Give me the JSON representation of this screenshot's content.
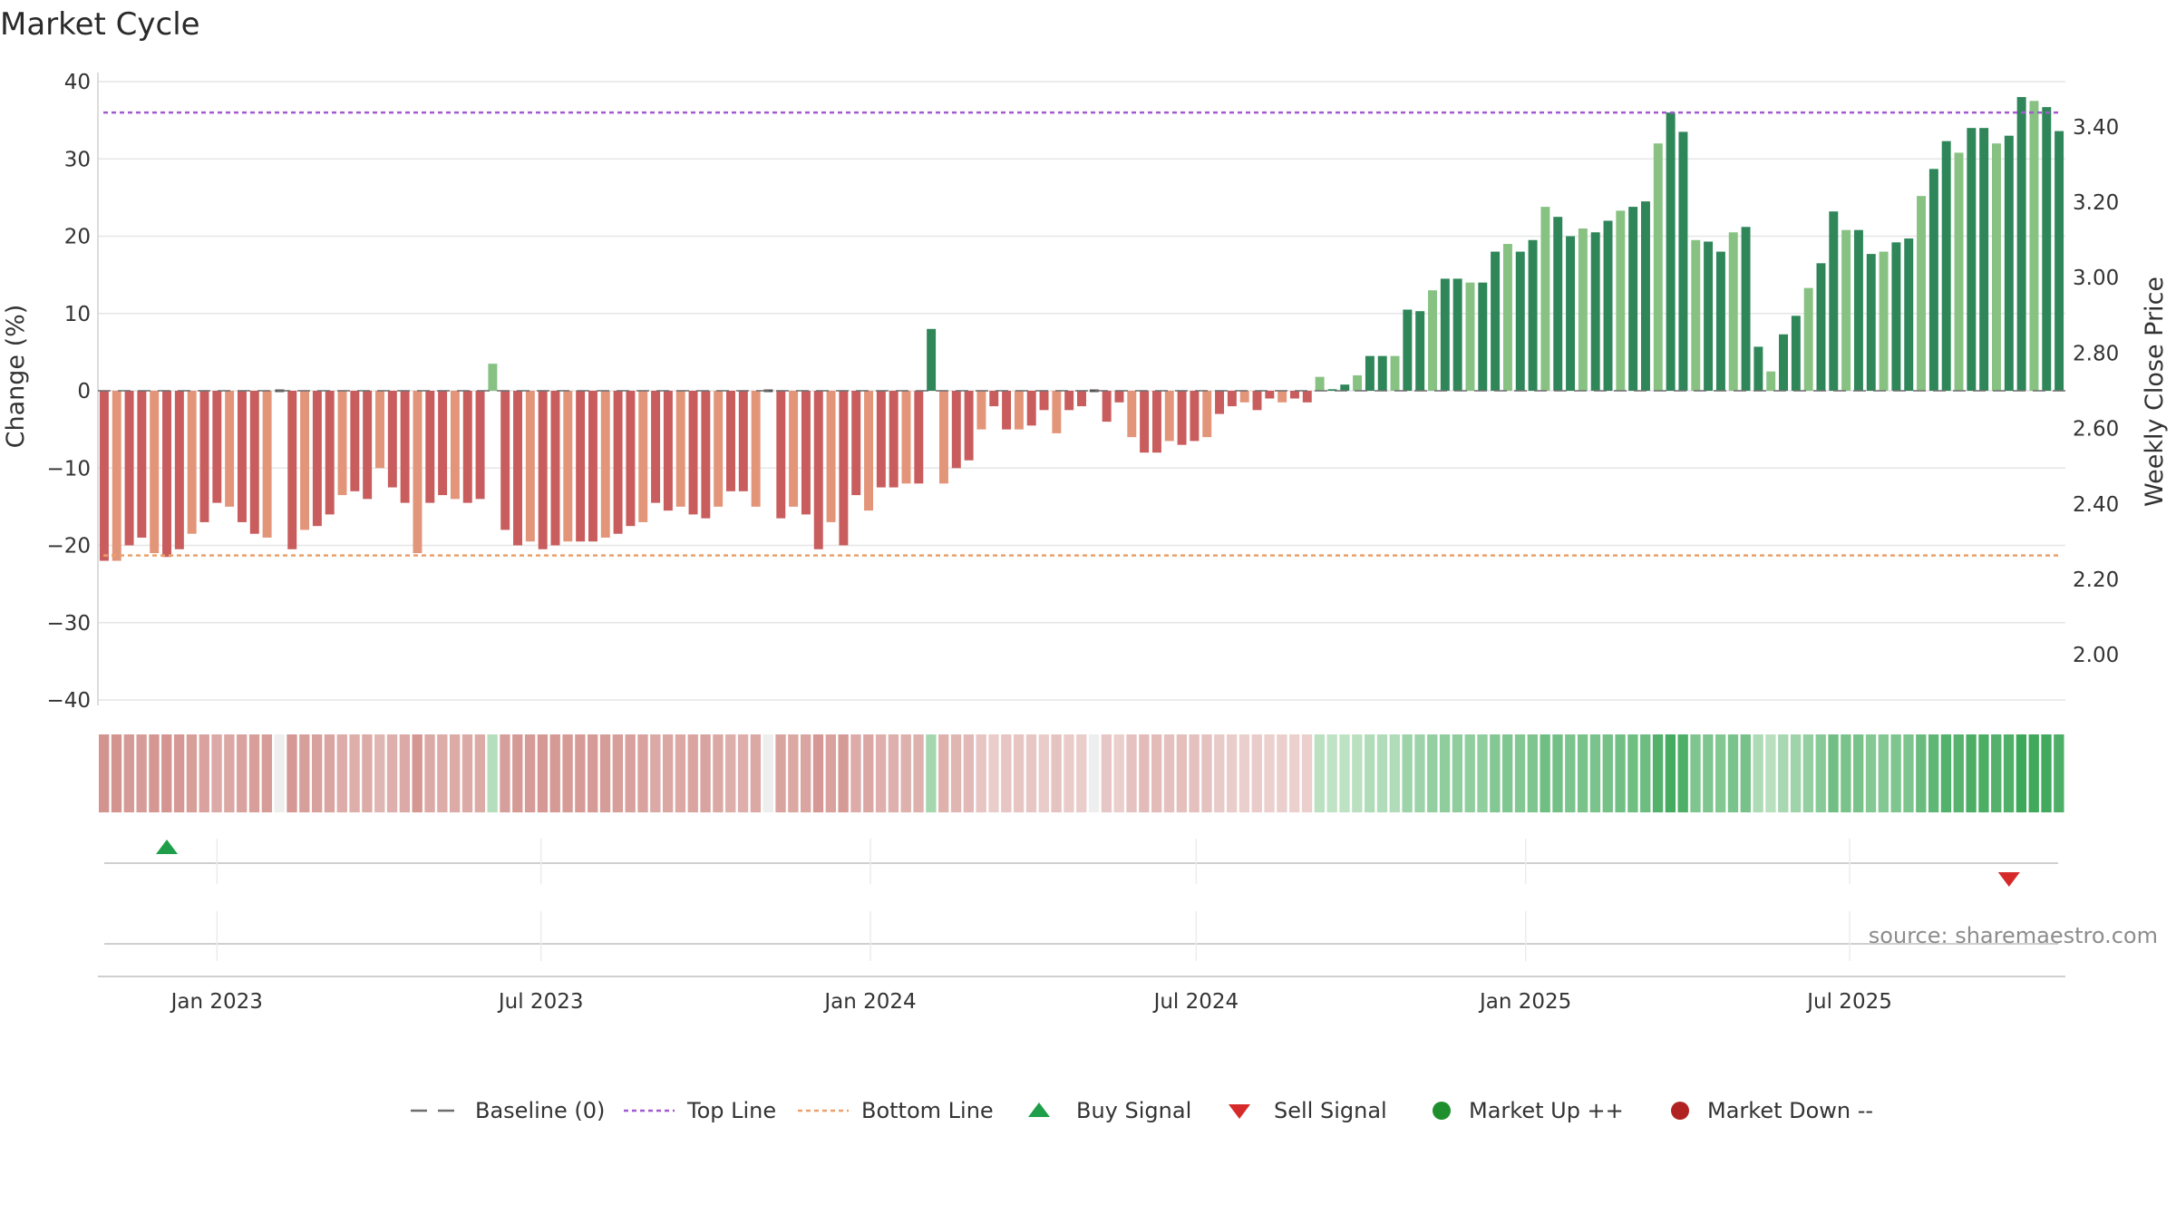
{
  "chart_data": {
    "type": "bar",
    "title": "Market Cycle",
    "ylabel": "Change (%)",
    "y2label": "Weekly Close Price",
    "ylim": [
      -40,
      40
    ],
    "y2lim": [
      1.88,
      3.52
    ],
    "yticks": [
      "40",
      "30",
      "20",
      "10",
      "0",
      "−10",
      "−20",
      "−30",
      "−40"
    ],
    "ytick_values": [
      40,
      30,
      20,
      10,
      0,
      -10,
      -20,
      -30,
      -40
    ],
    "y2ticks": [
      "3.40",
      "3.20",
      "3.00",
      "2.80",
      "2.60",
      "2.40",
      "2.20",
      "2.00"
    ],
    "y2tick_values": [
      3.4,
      3.2,
      3.0,
      2.8,
      2.6,
      2.4,
      2.2,
      2.0
    ],
    "xticks": [
      "Jan 2023",
      "Jul 2023",
      "Jan 2024",
      "Jul 2024",
      "Jan 2025",
      "Jul 2025"
    ],
    "xtick_dates": [
      "2023-01-01",
      "2023-07-01",
      "2024-01-01",
      "2024-07-01",
      "2025-01-01",
      "2025-07-01"
    ],
    "first_week": "2022-10-30",
    "top_line": 36,
    "bottom_line": -21.3,
    "values": [
      -22,
      -22,
      -20,
      -19,
      -21,
      -21.5,
      -20.5,
      -18.5,
      -17,
      -14.5,
      -15,
      -17,
      -18.5,
      -19,
      0,
      -20.5,
      -18,
      -17.5,
      -16,
      -13.5,
      -13,
      -14,
      -10,
      -12.5,
      -14.5,
      -21,
      -14.5,
      -13.5,
      -14,
      -14.5,
      -14,
      3.5,
      -18,
      -20,
      -19.5,
      -20.5,
      -20,
      -19.5,
      -19.5,
      -19.5,
      -19,
      -18.5,
      -17.5,
      -17,
      -14.5,
      -15.5,
      -15,
      -16,
      -16.5,
      -15,
      -13,
      -13,
      -15,
      0,
      -16.5,
      -15,
      -16,
      -20.5,
      -17,
      -20,
      -13.5,
      -15.5,
      -12.5,
      -12.5,
      -12,
      -12,
      8,
      -12,
      -10,
      -9,
      -5,
      -2,
      -5,
      -5,
      -4.5,
      -2.5,
      -5.5,
      -2.5,
      -2,
      0,
      -4,
      -1.5,
      -6,
      -8,
      -8,
      -6.5,
      -7,
      -6.5,
      -6,
      -3,
      -2,
      -1.5,
      -2.5,
      -1,
      -1.5,
      -1,
      -1.5,
      1.8,
      0.2,
      0.8,
      2,
      4.5,
      4.5,
      4.5,
      10.5,
      10.3,
      13,
      14.5,
      14.5,
      14,
      14,
      18,
      19,
      18,
      19.5,
      23.8,
      22.5,
      20,
      21,
      20.5,
      22,
      23.3,
      23.8,
      24.5,
      32,
      36,
      33.5,
      19.5,
      19.3,
      18,
      20.5,
      21.2,
      5.7,
      2.5,
      7.3,
      9.7,
      13.3,
      16.5,
      23.2,
      20.8,
      20.8,
      17.7,
      18,
      19.2,
      19.7,
      25.2,
      28.7,
      32.3,
      30.8,
      34,
      34,
      32,
      33,
      38,
      37.5,
      36.7,
      33.6
    ],
    "palette": {
      "down_dark": "#c95c5c",
      "down_light": "#e3957a",
      "up_dark": "#2e8659",
      "up_light": "#87c283",
      "top_line": "#a25ad0",
      "bottom_line": "#eaa06b",
      "baseline": "#6e6e6e",
      "buy": "#1f9e4a",
      "sell": "#d62a2a",
      "market_up": "#1f8f2e",
      "market_down": "#b12323"
    },
    "buy_signal_weeks": [
      5
    ],
    "sell_signal_weeks": [
      152
    ],
    "source": "source: sharemaestro.com",
    "legend": {
      "position": "bottom",
      "items": [
        "Baseline (0)",
        "Top Line",
        "Bottom Line",
        "Buy Signal",
        "Sell Signal",
        "Market Up ++",
        "Market Down --"
      ]
    }
  }
}
